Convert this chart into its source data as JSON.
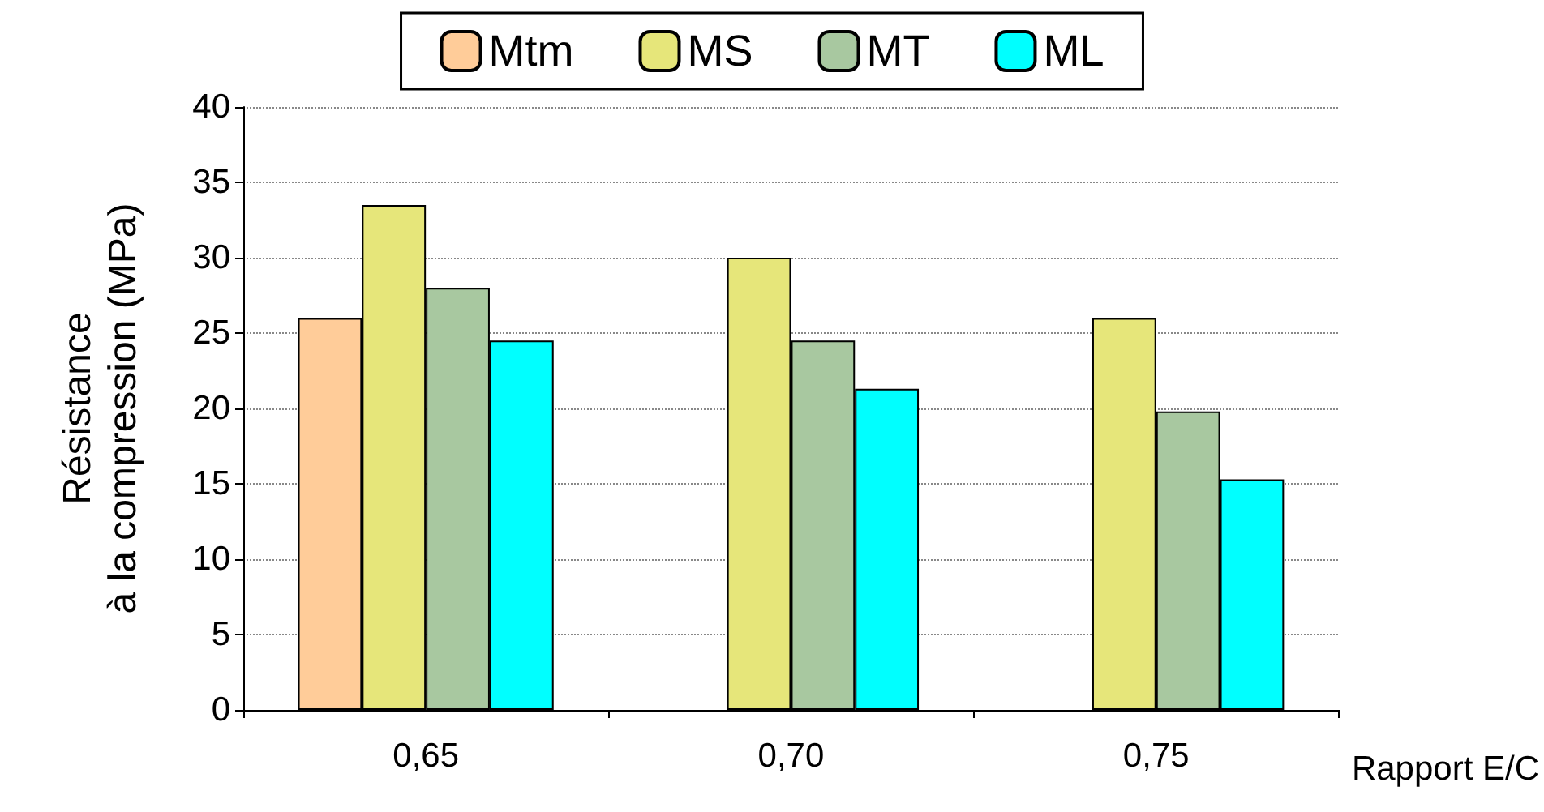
{
  "chart_data": {
    "type": "bar",
    "categories": [
      "0,65",
      "0,70",
      "0,75"
    ],
    "xlabel": "Rapport E/C",
    "ylabel": "Résistance\nà la compression (MPa)",
    "series": [
      {
        "name": "Mtm",
        "color": "#ffcc99",
        "values": [
          26,
          null,
          null
        ]
      },
      {
        "name": "MS",
        "color": "#e6e67a",
        "values": [
          33.5,
          30,
          26
        ]
      },
      {
        "name": "MT",
        "color": "#a8c8a0",
        "values": [
          28,
          24.5,
          19.8
        ]
      },
      {
        "name": "ML",
        "color": "#00ffff",
        "values": [
          24.5,
          21.3,
          15.3
        ]
      }
    ],
    "ylim": [
      0,
      40
    ],
    "yticks": [
      0,
      5,
      10,
      15,
      20,
      25,
      30,
      35,
      40
    ],
    "grid": "y",
    "legend": "top"
  }
}
